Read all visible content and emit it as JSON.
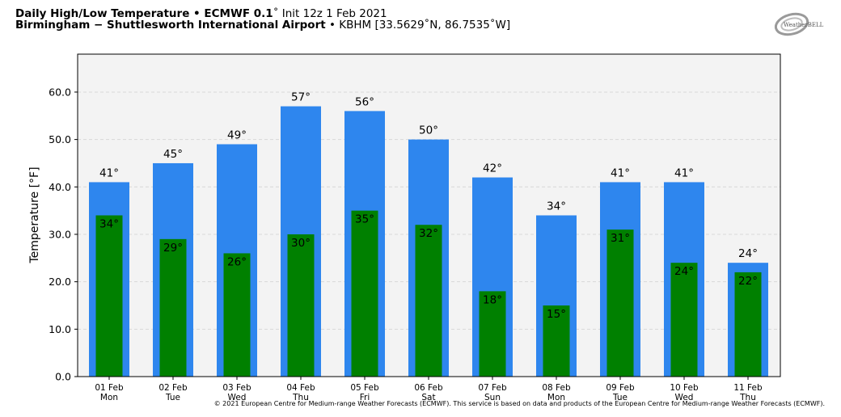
{
  "header": {
    "title_bold": "Daily High/Low Temperature • ECMWF 0.1",
    "title_rest": "˚ Init 12z 1 Feb 2021",
    "subtitle_bold": "Birmingham − Shuttlesworth International Airport",
    "subtitle_rest": " • KBHM [33.5629˚N, 86.7535˚W]"
  },
  "logo": {
    "text": "WeatherBELL"
  },
  "footer": {
    "text": "© 2021 European Centre for Medium-range Weather Forecasts (ECMWF). This service is based on data and products of the European Centre for Medium-range Weather Forecasts (ECMWF)."
  },
  "colors": {
    "high": "#2e86ee",
    "low": "#008000",
    "plot_bg": "#f3f3f3",
    "grid": "#d8d8d8"
  },
  "chart_data": {
    "type": "bar",
    "ylabel": "Temperature [°F]",
    "ylim": [
      0,
      68
    ],
    "yticks": [
      0,
      10,
      20,
      30,
      40,
      50,
      60
    ],
    "grid": true,
    "categories": [
      "01 Feb",
      "02 Feb",
      "03 Feb",
      "04 Feb",
      "05 Feb",
      "06 Feb",
      "07 Feb",
      "08 Feb",
      "09 Feb",
      "10 Feb",
      "11 Feb"
    ],
    "weekdays": [
      "Mon",
      "Tue",
      "Wed",
      "Thu",
      "Fri",
      "Sat",
      "Sun",
      "Mon",
      "Tue",
      "Wed",
      "Thu"
    ],
    "series": [
      {
        "key": "high",
        "values": [
          41,
          45,
          49,
          57,
          56,
          50,
          42,
          34,
          41,
          41,
          24
        ],
        "labels": [
          "41°",
          "45°",
          "49°",
          "57°",
          "56°",
          "50°",
          "42°",
          "34°",
          "41°",
          "41°",
          "24°"
        ]
      },
      {
        "key": "low",
        "values": [
          34,
          29,
          26,
          30,
          35,
          32,
          18,
          15,
          31,
          24,
          22
        ],
        "labels": [
          "34°",
          "29°",
          "26°",
          "30°",
          "35°",
          "32°",
          "18°",
          "15°",
          "31°",
          "24°",
          "22°"
        ]
      }
    ]
  }
}
